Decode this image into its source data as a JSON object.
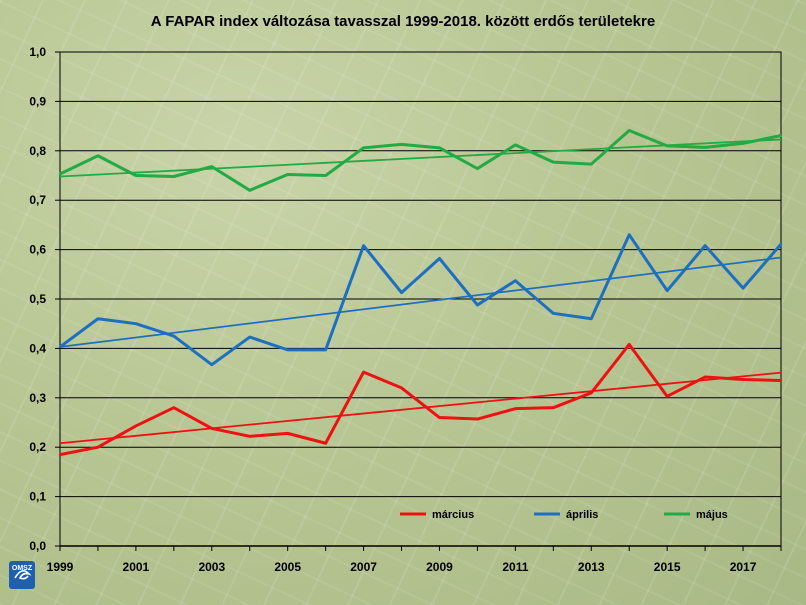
{
  "chart_data": {
    "type": "line",
    "title": "A FAPAR index változása tavasszal 1999-2018. között erdős területekre",
    "x": [
      1999,
      2000,
      2001,
      2002,
      2003,
      2004,
      2005,
      2006,
      2007,
      2008,
      2009,
      2010,
      2011,
      2012,
      2013,
      2014,
      2015,
      2016,
      2017,
      2018
    ],
    "xticks": [
      "1999",
      "2001",
      "2003",
      "2005",
      "2007",
      "2009",
      "2011",
      "2013",
      "2015",
      "2017"
    ],
    "xtick_values": [
      1999,
      2001,
      2003,
      2005,
      2007,
      2009,
      2011,
      2013,
      2015,
      2017
    ],
    "yticks": [
      "0,0",
      "0,1",
      "0,2",
      "0,3",
      "0,4",
      "0,5",
      "0,6",
      "0,7",
      "0,8",
      "0,9",
      "1,0"
    ],
    "ylim": [
      0,
      1
    ],
    "xlim": [
      1999,
      2018
    ],
    "grid": true,
    "legend_position": "bottom-right",
    "series": [
      {
        "name": "március",
        "color": "#ee1111",
        "values": [
          0.185,
          0.2,
          0.243,
          0.28,
          0.238,
          0.222,
          0.228,
          0.208,
          0.352,
          0.32,
          0.26,
          0.257,
          0.278,
          0.28,
          0.31,
          0.408,
          0.303,
          0.342,
          0.337,
          0.335
        ],
        "trend": [
          0.208,
          0.351
        ]
      },
      {
        "name": "április",
        "color": "#1e6fc0",
        "values": [
          0.403,
          0.46,
          0.45,
          0.425,
          0.367,
          0.423,
          0.397,
          0.397,
          0.608,
          0.513,
          0.582,
          0.488,
          0.537,
          0.471,
          0.46,
          0.63,
          0.517,
          0.608,
          0.522,
          0.611
        ],
        "trend": [
          0.403,
          0.584
        ]
      },
      {
        "name": "május",
        "color": "#22aa44",
        "values": [
          0.753,
          0.79,
          0.75,
          0.748,
          0.768,
          0.72,
          0.752,
          0.75,
          0.806,
          0.813,
          0.806,
          0.764,
          0.812,
          0.777,
          0.773,
          0.841,
          0.81,
          0.807,
          0.815,
          0.831
        ],
        "trend": [
          0.748,
          0.823
        ]
      }
    ]
  },
  "logo": {
    "text": "OMSZ",
    "color": "#1f5fae"
  }
}
